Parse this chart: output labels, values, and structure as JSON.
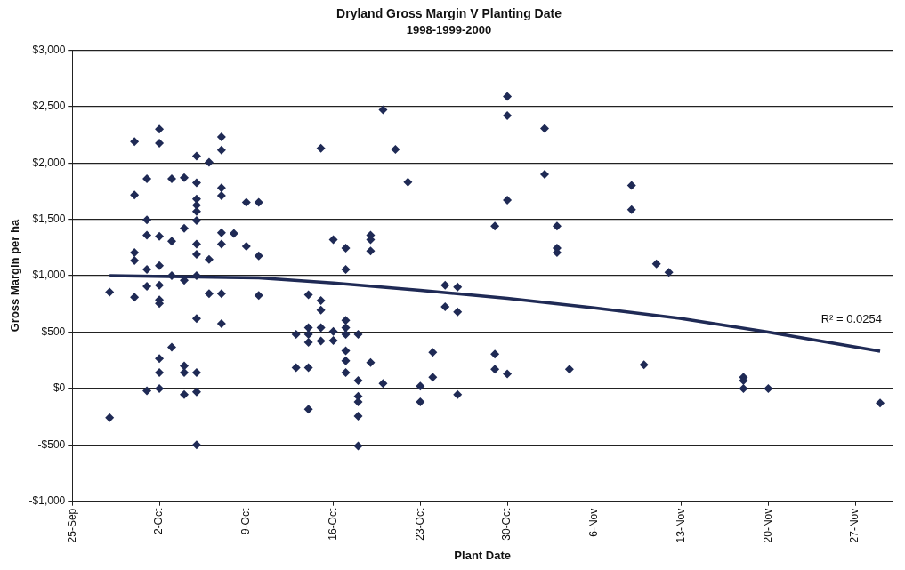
{
  "chart_data": {
    "type": "scatter",
    "title": "Dryland Gross Margin V Planting Date",
    "subtitle": "1998-1999-2000",
    "xlabel": "Plant Date",
    "ylabel": "Gross Margin per ha",
    "series": [
      {
        "color": "#1f2a55",
        "x": [
          "--09-28",
          "--09-28",
          "--09-30",
          "--09-30",
          "--09-30",
          "--09-30",
          "--09-30",
          "--10-01",
          "--10-01",
          "--10-01",
          "--10-01",
          "--10-01",
          "--10-01",
          "--10-02",
          "--10-02",
          "--10-02",
          "--10-02",
          "--10-02",
          "--10-02",
          "--10-02",
          "--10-02",
          "--10-02",
          "--10-02",
          "--10-03",
          "--10-03",
          "--10-03",
          "--10-03",
          "--10-04",
          "--10-04",
          "--10-04",
          "--10-04",
          "--10-04",
          "--10-04",
          "--10-05",
          "--10-05",
          "--10-05",
          "--10-05",
          "--10-05",
          "--10-05",
          "--10-05",
          "--10-05",
          "--10-05",
          "--10-05",
          "--10-05",
          "--10-05",
          "--10-05",
          "--10-06",
          "--10-06",
          "--10-06",
          "--10-07",
          "--10-07",
          "--10-07",
          "--10-07",
          "--10-07",
          "--10-07",
          "--10-07",
          "--10-07",
          "--10-08",
          "--10-09",
          "--10-09",
          "--10-10",
          "--10-10",
          "--10-10",
          "--10-13",
          "--10-13",
          "--10-14",
          "--10-14",
          "--10-14",
          "--10-14",
          "--10-14",
          "--10-14",
          "--10-15",
          "--10-15",
          "--10-15",
          "--10-15",
          "--10-15",
          "--10-16",
          "--10-16",
          "--10-16",
          "--10-17",
          "--10-17",
          "--10-17",
          "--10-17",
          "--10-17",
          "--10-17",
          "--10-17",
          "--10-17",
          "--10-18",
          "--10-18",
          "--10-18",
          "--10-18",
          "--10-18",
          "--10-18",
          "--10-19",
          "--10-19",
          "--10-19",
          "--10-19",
          "--10-20",
          "--10-20",
          "--10-21",
          "--10-22",
          "--10-23",
          "--10-23",
          "--10-24",
          "--10-24",
          "--10-25",
          "--10-25",
          "--10-26",
          "--10-26",
          "--10-26",
          "--10-29",
          "--10-29",
          "--10-29",
          "--10-30",
          "--10-30",
          "--10-30",
          "--10-30",
          "--11-02",
          "--11-02",
          "--11-03",
          "--11-03",
          "--11-03",
          "--11-04",
          "--11-09",
          "--11-09",
          "--11-10",
          "--11-11",
          "--11-12",
          "--11-18",
          "--11-18",
          "--11-18",
          "--11-20",
          "--11-29"
        ],
        "values": [
          855,
          -260,
          2190,
          1715,
          1205,
          1135,
          810,
          1860,
          1495,
          1360,
          1055,
          905,
          -20,
          2300,
          2175,
          1350,
          1090,
          915,
          785,
          755,
          265,
          140,
          0,
          1860,
          1305,
          1000,
          365,
          1870,
          1420,
          960,
          200,
          140,
          -55,
          2060,
          1825,
          1680,
          1625,
          1570,
          1490,
          1280,
          1190,
          1000,
          620,
          140,
          -30,
          -500,
          2005,
          1145,
          840,
          2230,
          2115,
          1780,
          1710,
          1380,
          1280,
          840,
          575,
          1375,
          1650,
          1260,
          1650,
          1175,
          825,
          480,
          185,
          830,
          540,
          480,
          410,
          185,
          -185,
          2130,
          780,
          695,
          540,
          420,
          1320,
          505,
          425,
          1245,
          1055,
          605,
          540,
          480,
          335,
          245,
          140,
          480,
          70,
          -70,
          -120,
          -245,
          -510,
          1360,
          1320,
          1220,
          230,
          2470,
          45,
          2120,
          1830,
          20,
          -120,
          320,
          100,
          915,
          725,
          900,
          680,
          -55,
          1440,
          305,
          170,
          2590,
          2420,
          1670,
          130,
          2305,
          1900,
          1440,
          1245,
          1205,
          170,
          1800,
          1585,
          210,
          1105,
          1030,
          100,
          70,
          0,
          0,
          -130
        ]
      },
      {
        "type": "line",
        "color": "#1f2a55",
        "marker": "none",
        "x": [
          "--09-28",
          "--10-10",
          "--10-16",
          "--10-23",
          "--10-30",
          "--11-06",
          "--11-13",
          "--11-20",
          "--11-29"
        ],
        "values": [
          1000,
          980,
          935,
          870,
          800,
          715,
          620,
          500,
          330
        ]
      }
    ],
    "xlim": [
      "--09-25",
      "--11-30"
    ],
    "xticks": [
      {
        "value": "--09-25",
        "label": "25-Sep"
      },
      {
        "value": "--10-02",
        "label": "2-Oct"
      },
      {
        "value": "--10-09",
        "label": "9-Oct"
      },
      {
        "value": "--10-16",
        "label": "16-Oct"
      },
      {
        "value": "--10-23",
        "label": "23-Oct"
      },
      {
        "value": "--10-30",
        "label": "30-Oct"
      },
      {
        "value": "--11-06",
        "label": "6-Nov"
      },
      {
        "value": "--11-13",
        "label": "13-Nov"
      },
      {
        "value": "--11-20",
        "label": "20-Nov"
      },
      {
        "value": "--11-27",
        "label": "27-Nov"
      }
    ],
    "ylim": [
      -1000,
      3000
    ],
    "yticks": [
      {
        "value": -1000,
        "label": "-$1,000"
      },
      {
        "value": -500,
        "label": "-$500"
      },
      {
        "value": 0,
        "label": "$0"
      },
      {
        "value": 500,
        "label": "$500"
      },
      {
        "value": 1000,
        "label": "$1,000"
      },
      {
        "value": 1500,
        "label": "$1,500"
      },
      {
        "value": 2000,
        "label": "$2,000"
      },
      {
        "value": 2500,
        "label": "$2,500"
      },
      {
        "value": 3000,
        "label": "$3,000"
      }
    ],
    "annotations": [
      "R² = 0.0254"
    ],
    "grid": "y",
    "legend": false,
    "marker": "diamond"
  }
}
